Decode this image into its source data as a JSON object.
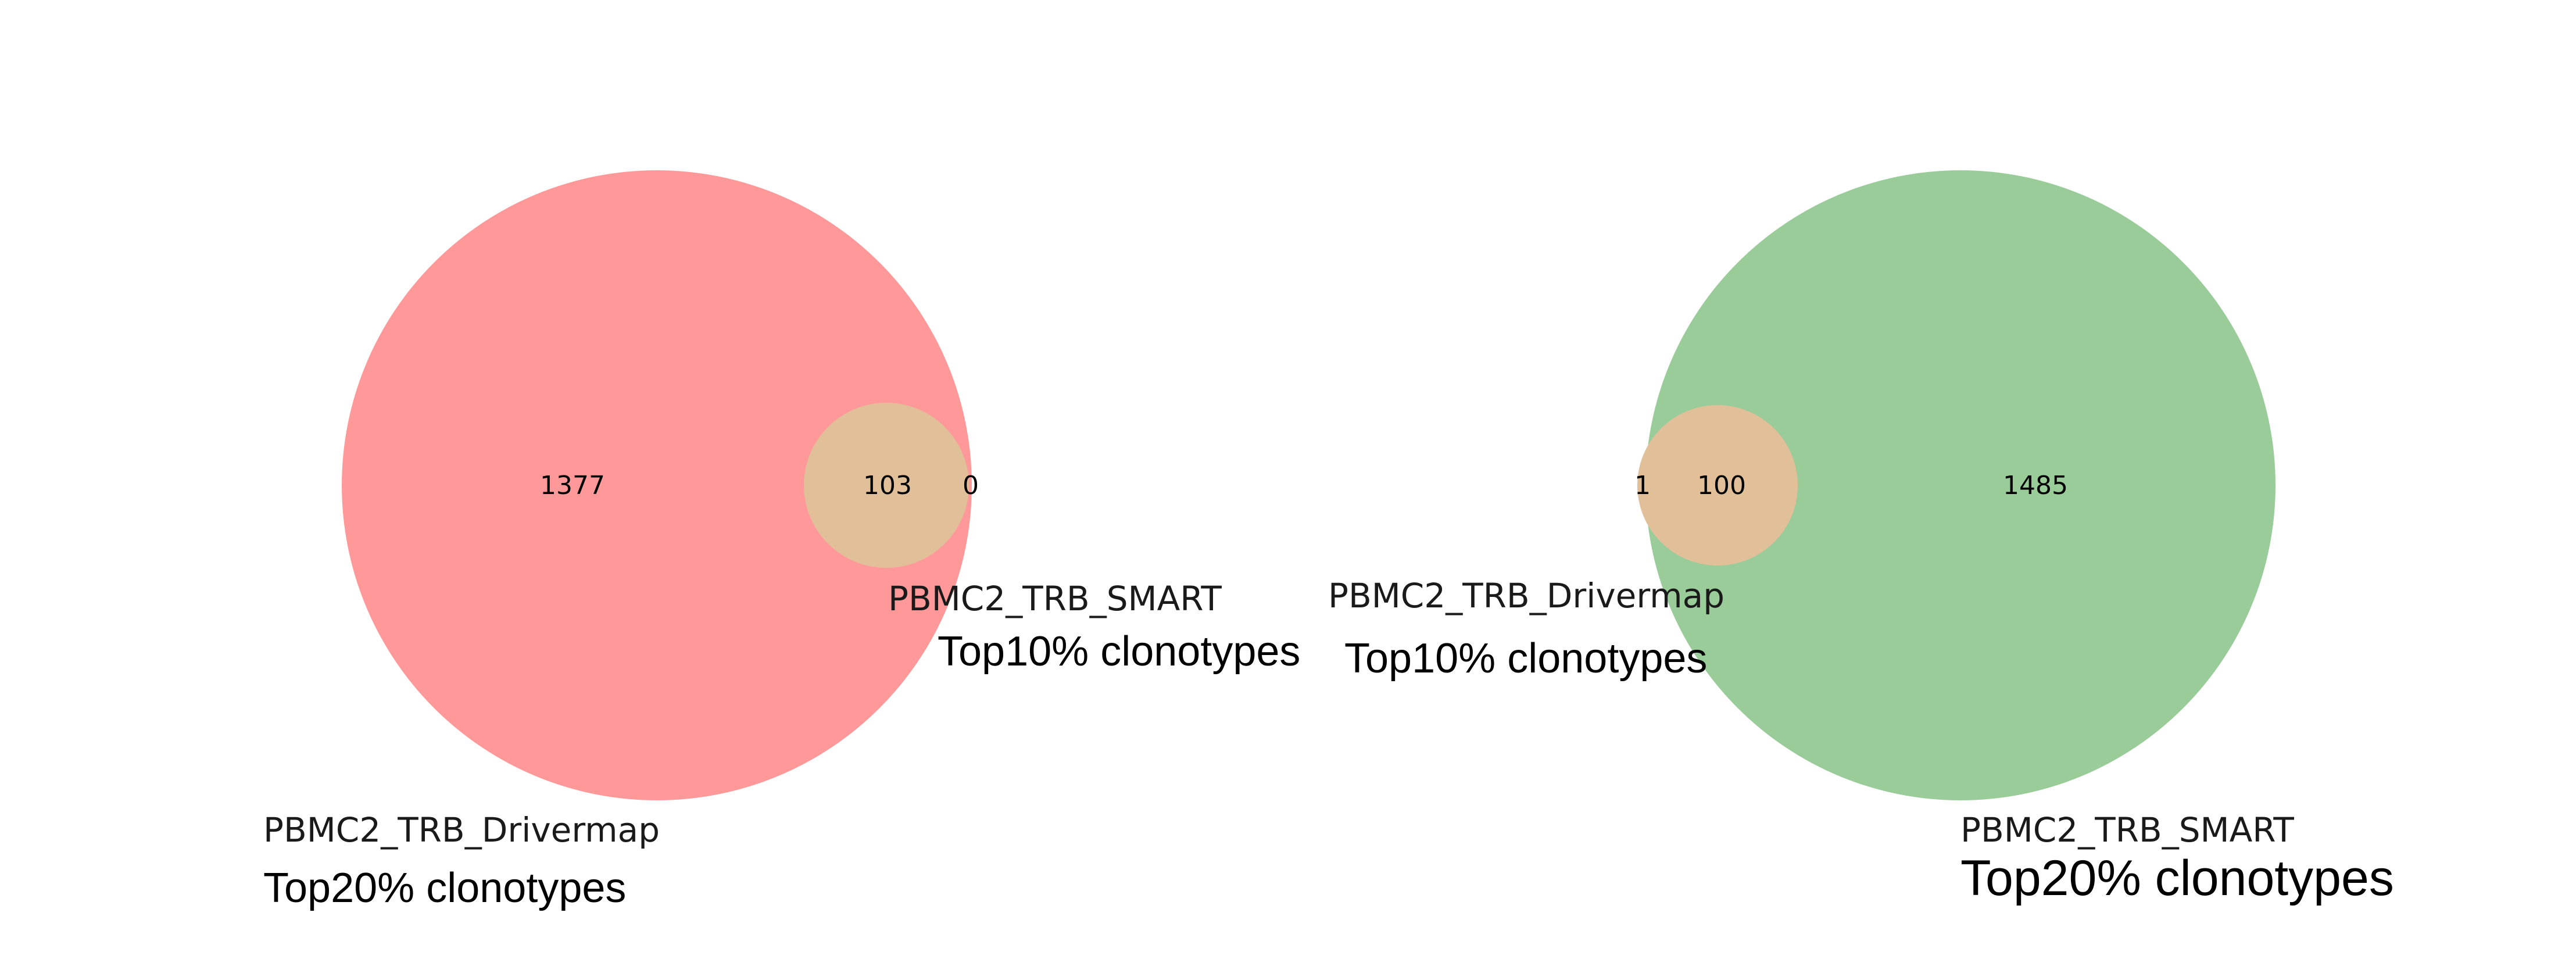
{
  "chart_data": [
    {
      "type": "venn",
      "title": "",
      "sets": [
        {
          "name": "PBMC2_TRB_Drivermap",
          "subtitle": "Top20% clonotypes",
          "color": "#ff9999",
          "total": 1480
        },
        {
          "name": "PBMC2_TRB_SMART",
          "subtitle": "Top10% clonotypes",
          "color": "#e0bf99",
          "total": 103
        }
      ],
      "regions": {
        "only_a": 1377,
        "intersection": 103,
        "only_b": 0
      },
      "labels": {
        "only_a": "1377",
        "intersection": "103",
        "only_b": "0"
      }
    },
    {
      "type": "venn",
      "title": "",
      "sets": [
        {
          "name": "PBMC2_TRB_Drivermap",
          "subtitle": "Top10% clonotypes",
          "color": "#e0bf99",
          "total": 101
        },
        {
          "name": "PBMC2_TRB_SMART",
          "subtitle": "Top20% clonotypes",
          "color": "#99cc99",
          "total": 1585
        }
      ],
      "regions": {
        "only_a": 1,
        "intersection": 100,
        "only_b": 1485
      },
      "labels": {
        "only_a": "1",
        "intersection": "100",
        "only_b": "1485"
      }
    }
  ]
}
